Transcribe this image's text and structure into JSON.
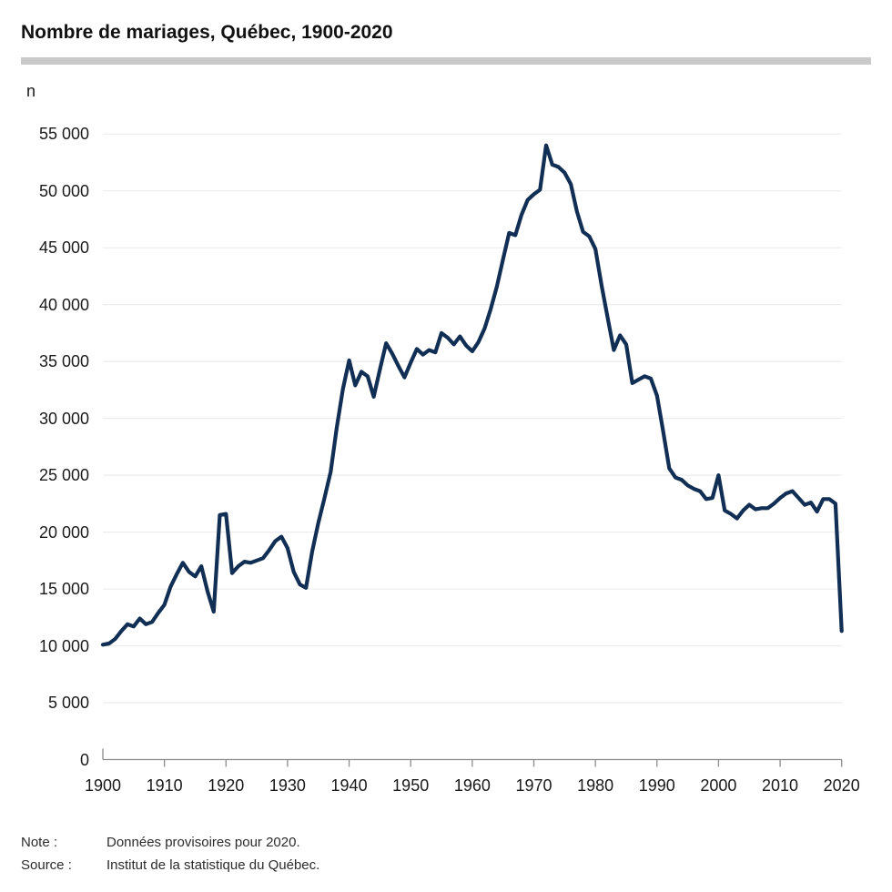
{
  "title": "Nombre de mariages, Québec, 1900-2020",
  "y_axis_unit_label": "n",
  "footnotes": {
    "note_label": "Note :",
    "note_text": "Données provisoires pour 2020.",
    "source_label": "Source :",
    "source_text": "Institut de la statistique du Québec."
  },
  "colors": {
    "line": "#112e54",
    "grid": "#ececec",
    "axis": "#8c8c8c",
    "text": "#1a1a1a",
    "divider": "#c9c9c9"
  },
  "chart_data": {
    "type": "line",
    "title": "Nombre de mariages, Québec, 1900-2020",
    "xlabel": "",
    "ylabel": "n",
    "xlim": [
      1900,
      2020
    ],
    "ylim": [
      0,
      55000
    ],
    "grid": "horizontal",
    "legend_position": "none",
    "x_ticks": [
      1900,
      1910,
      1920,
      1930,
      1940,
      1950,
      1960,
      1970,
      1980,
      1990,
      2000,
      2010,
      2020
    ],
    "y_ticks": [
      0,
      5000,
      10000,
      15000,
      20000,
      25000,
      30000,
      35000,
      40000,
      45000,
      50000,
      55000
    ],
    "y_tick_labels": [
      "0",
      "5 000",
      "10 000",
      "15 000",
      "20 000",
      "25 000",
      "30 000",
      "35 000",
      "40 000",
      "45 000",
      "50 000",
      "55 000"
    ],
    "series": [
      {
        "name": "Nombre de mariages",
        "x_start": 1900,
        "x_step": 1,
        "values": [
          10100,
          10200,
          10600,
          11300,
          11900,
          11700,
          12400,
          11900,
          12100,
          12900,
          13600,
          15200,
          16300,
          17300,
          16500,
          16100,
          17000,
          14800,
          13000,
          21500,
          21600,
          16400,
          17000,
          17400,
          17300,
          17500,
          17700,
          18400,
          19200,
          19600,
          18600,
          16500,
          15400,
          15100,
          18300,
          20800,
          23000,
          25300,
          29200,
          32600,
          35100,
          32900,
          34100,
          33700,
          31900,
          34300,
          36600,
          35700,
          34600,
          33600,
          34900,
          36100,
          35600,
          36000,
          35800,
          37500,
          37100,
          36500,
          37200,
          36400,
          35900,
          36700,
          37900,
          39600,
          41600,
          44000,
          46300,
          46100,
          47900,
          49200,
          49700,
          50100,
          54000,
          52300,
          52100,
          51600,
          50600,
          48200,
          46400,
          46000,
          44900,
          41700,
          38800,
          36000,
          37300,
          36500,
          33100,
          33400,
          33700,
          33500,
          32000,
          28900,
          25600,
          24800,
          24600,
          24100,
          23800,
          23600,
          22900,
          23000,
          25000,
          21900,
          21600,
          21200,
          21900,
          22400,
          22000,
          22100,
          22100,
          22500,
          23000,
          23400,
          23600,
          23000,
          22400,
          22600,
          21800,
          22900,
          22900,
          22500,
          11300
        ]
      }
    ]
  }
}
